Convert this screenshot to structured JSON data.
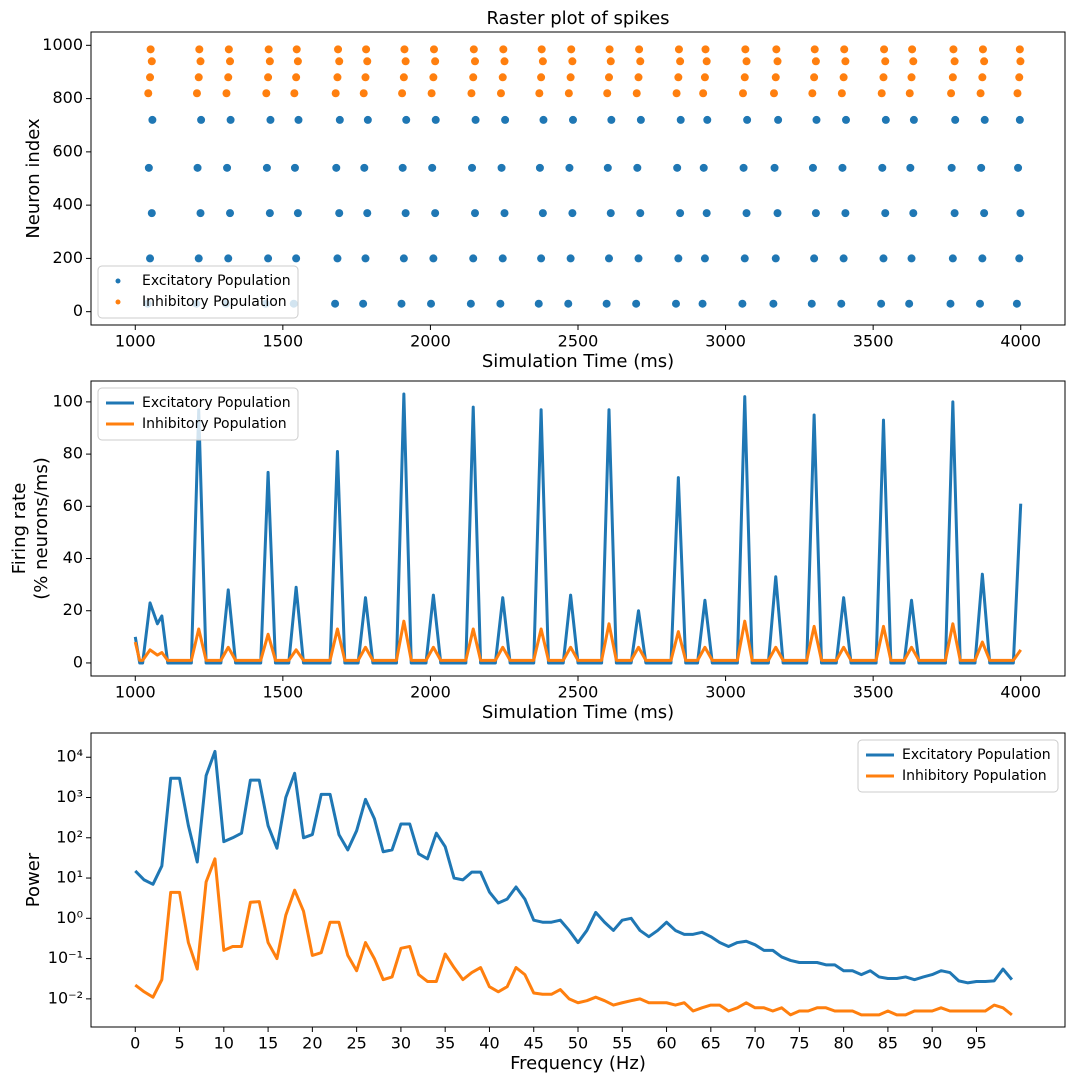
{
  "chart_data": [
    {
      "type": "scatter",
      "title": "Raster plot of spikes",
      "xlabel": "Simulation Time (ms)",
      "ylabel": "Neuron index",
      "xlim": [
        850,
        4150
      ],
      "xticks": [
        1000,
        1500,
        2000,
        2500,
        3000,
        3500,
        4000
      ],
      "ylim": [
        -50,
        1050
      ],
      "yticks": [
        0,
        200,
        400,
        600,
        800,
        1000
      ],
      "legend": "lower left",
      "series": [
        {
          "name": "Excitatory Population",
          "color": "#1f77b4",
          "x": [
            1042,
            1050,
            1056,
            1046,
            1058,
            1207,
            1215,
            1221,
            1211,
            1223,
            1307,
            1315,
            1321,
            1311,
            1323,
            1442,
            1450,
            1456,
            1446,
            1458,
            1537,
            1545,
            1551,
            1541,
            1553,
            1677,
            1685,
            1691,
            1681,
            1693,
            1772,
            1780,
            1786,
            1776,
            1788,
            1902,
            1910,
            1916,
            1906,
            1918,
            2002,
            2010,
            2016,
            2006,
            2018,
            2137,
            2145,
            2151,
            2141,
            2153,
            2237,
            2245,
            2251,
            2241,
            2253,
            2367,
            2375,
            2381,
            2371,
            2383,
            2467,
            2475,
            2481,
            2471,
            2483,
            2597,
            2605,
            2611,
            2601,
            2613,
            2697,
            2705,
            2711,
            2701,
            2713,
            2832,
            2840,
            2846,
            2836,
            2848,
            2922,
            2930,
            2936,
            2926,
            2938,
            3057,
            3065,
            3071,
            3061,
            3073,
            3162,
            3170,
            3176,
            3166,
            3178,
            3292,
            3300,
            3306,
            3296,
            3308,
            3392,
            3400,
            3406,
            3396,
            3408,
            3527,
            3535,
            3541,
            3531,
            3543,
            3622,
            3630,
            3636,
            3626,
            3638,
            3762,
            3770,
            3776,
            3766,
            3778,
            3862,
            3870,
            3876,
            3866,
            3878,
            3987,
            3995,
            3999,
            3991,
            3997
          ],
          "values": [
            30,
            200,
            370,
            540,
            720,
            30,
            200,
            370,
            540,
            720,
            30,
            200,
            370,
            540,
            720,
            30,
            200,
            370,
            540,
            720,
            30,
            200,
            370,
            540,
            720,
            30,
            200,
            370,
            540,
            720,
            30,
            200,
            370,
            540,
            720,
            30,
            200,
            370,
            540,
            720,
            30,
            200,
            370,
            540,
            720,
            30,
            200,
            370,
            540,
            720,
            30,
            200,
            370,
            540,
            720,
            30,
            200,
            370,
            540,
            720,
            30,
            200,
            370,
            540,
            720,
            30,
            200,
            370,
            540,
            720,
            30,
            200,
            370,
            540,
            720,
            30,
            200,
            370,
            540,
            720,
            30,
            200,
            370,
            540,
            720,
            30,
            200,
            370,
            540,
            720,
            30,
            200,
            370,
            540,
            720,
            30,
            200,
            370,
            540,
            720,
            30,
            200,
            370,
            540,
            720,
            30,
            200,
            370,
            540,
            720,
            30,
            200,
            370,
            540,
            720,
            30,
            200,
            370,
            540,
            720,
            30,
            200,
            370,
            540,
            720,
            30,
            200,
            370,
            540,
            720
          ]
        },
        {
          "name": "Inhibitory Population",
          "color": "#ff7f0e",
          "x": [
            1044,
            1050,
            1056,
            1052,
            1209,
            1215,
            1221,
            1217,
            1309,
            1315,
            1321,
            1317,
            1444,
            1450,
            1456,
            1452,
            1539,
            1545,
            1551,
            1547,
            1679,
            1685,
            1691,
            1687,
            1774,
            1780,
            1786,
            1782,
            1904,
            1910,
            1916,
            1912,
            2004,
            2010,
            2016,
            2012,
            2139,
            2145,
            2151,
            2147,
            2239,
            2245,
            2251,
            2247,
            2369,
            2375,
            2381,
            2377,
            2469,
            2475,
            2481,
            2477,
            2599,
            2605,
            2611,
            2607,
            2699,
            2705,
            2711,
            2707,
            2834,
            2840,
            2846,
            2842,
            2924,
            2930,
            2936,
            2932,
            3059,
            3065,
            3071,
            3067,
            3164,
            3170,
            3176,
            3172,
            3294,
            3300,
            3306,
            3302,
            3394,
            3400,
            3406,
            3402,
            3529,
            3535,
            3541,
            3537,
            3624,
            3630,
            3636,
            3632,
            3764,
            3770,
            3776,
            3772,
            3864,
            3870,
            3876,
            3872,
            3989,
            3995,
            3999,
            3997
          ],
          "values": [
            820,
            880,
            940,
            985,
            820,
            880,
            940,
            985,
            820,
            880,
            940,
            985,
            820,
            880,
            940,
            985,
            820,
            880,
            940,
            985,
            820,
            880,
            940,
            985,
            820,
            880,
            940,
            985,
            820,
            880,
            940,
            985,
            820,
            880,
            940,
            985,
            820,
            880,
            940,
            985,
            820,
            880,
            940,
            985,
            820,
            880,
            940,
            985,
            820,
            880,
            940,
            985,
            820,
            880,
            940,
            985,
            820,
            880,
            940,
            985,
            820,
            880,
            940,
            985,
            820,
            880,
            940,
            985,
            820,
            880,
            940,
            985,
            820,
            880,
            940,
            985,
            820,
            880,
            940,
            985,
            820,
            880,
            940,
            985,
            820,
            880,
            940,
            985,
            820,
            880,
            940,
            985,
            820,
            880,
            940,
            985,
            820,
            880,
            940,
            985,
            820,
            880,
            940,
            985
          ]
        }
      ]
    },
    {
      "type": "line",
      "xlabel": "Simulation Time (ms)",
      "ylabel": [
        "Firing rate",
        "(% neurons/ms)"
      ],
      "xlim": [
        850,
        4150
      ],
      "xticks": [
        1000,
        1500,
        2000,
        2500,
        3000,
        3500,
        4000
      ],
      "ylim": [
        -5,
        108
      ],
      "yticks": [
        0,
        20,
        40,
        60,
        80,
        100
      ],
      "legend": "upper left",
      "x": [
        1000,
        1015,
        1025,
        1050,
        1075,
        1090,
        1110,
        1190,
        1215,
        1240,
        1290,
        1315,
        1340,
        1425,
        1450,
        1475,
        1520,
        1545,
        1570,
        1660,
        1685,
        1710,
        1755,
        1780,
        1805,
        1885,
        1910,
        1935,
        1985,
        2010,
        2035,
        2120,
        2145,
        2170,
        2220,
        2245,
        2270,
        2350,
        2375,
        2400,
        2450,
        2475,
        2500,
        2580,
        2605,
        2630,
        2680,
        2705,
        2730,
        2815,
        2840,
        2865,
        2905,
        2930,
        2955,
        3040,
        3065,
        3090,
        3145,
        3170,
        3195,
        3275,
        3300,
        3325,
        3375,
        3400,
        3425,
        3510,
        3535,
        3560,
        3605,
        3630,
        3655,
        3745,
        3770,
        3795,
        3845,
        3870,
        3895,
        3975,
        4000
      ],
      "series": [
        {
          "name": "Excitatory Population",
          "color": "#1f77b4",
          "values": [
            10,
            0,
            0,
            23,
            15,
            18,
            0,
            0,
            97,
            0,
            0,
            28,
            0,
            0,
            73,
            0,
            0,
            29,
            0,
            0,
            81,
            0,
            0,
            25,
            0,
            0,
            103,
            0,
            0,
            26,
            0,
            0,
            98,
            0,
            0,
            25,
            0,
            0,
            97,
            0,
            0,
            26,
            0,
            0,
            97,
            0,
            0,
            20,
            0,
            0,
            71,
            0,
            0,
            24,
            0,
            0,
            102,
            0,
            0,
            33,
            0,
            0,
            95,
            0,
            0,
            25,
            0,
            0,
            93,
            0,
            0,
            24,
            0,
            0,
            100,
            0,
            0,
            34,
            0,
            0,
            61
          ]
        },
        {
          "name": "Inhibitory Population",
          "color": "#ff7f0e",
          "values": [
            8,
            1,
            1,
            5,
            3,
            4,
            1,
            1,
            13,
            1,
            1,
            6,
            1,
            1,
            11,
            1,
            1,
            5,
            1,
            1,
            13,
            1,
            1,
            6,
            1,
            1,
            16,
            1,
            1,
            6,
            1,
            1,
            13,
            1,
            1,
            6,
            1,
            1,
            13,
            1,
            1,
            6,
            1,
            1,
            15,
            1,
            1,
            6,
            1,
            1,
            12,
            1,
            1,
            6,
            1,
            1,
            16,
            1,
            1,
            6,
            1,
            1,
            14,
            1,
            1,
            6,
            1,
            1,
            14,
            1,
            1,
            6,
            1,
            1,
            15,
            1,
            1,
            8,
            1,
            1,
            5
          ]
        }
      ]
    },
    {
      "type": "line",
      "xlabel": "Frequency (Hz)",
      "ylabel": "Power",
      "ylog": true,
      "xlim": [
        -5,
        105
      ],
      "xticks": [
        0,
        5,
        10,
        15,
        20,
        25,
        30,
        35,
        40,
        45,
        50,
        55,
        60,
        65,
        70,
        75,
        80,
        85,
        90,
        95
      ],
      "ylim": [
        0.002,
        40000
      ],
      "yticks": [
        {
          "value": 0.01,
          "label": "10⁻²"
        },
        {
          "value": 0.1,
          "label": "10⁻¹"
        },
        {
          "value": 1,
          "label": "10⁰"
        },
        {
          "value": 10,
          "label": "10¹"
        },
        {
          "value": 100,
          "label": "10²"
        },
        {
          "value": 1000,
          "label": "10³"
        },
        {
          "value": 10000,
          "label": "10⁴"
        }
      ],
      "legend": "upper right",
      "x": [
        0,
        1,
        2,
        3,
        4,
        5,
        6,
        7,
        8,
        9,
        10,
        11,
        12,
        13,
        14,
        15,
        16,
        17,
        18,
        19,
        20,
        21,
        22,
        23,
        24,
        25,
        26,
        27,
        28,
        29,
        30,
        31,
        32,
        33,
        34,
        35,
        36,
        37,
        38,
        39,
        40,
        41,
        42,
        43,
        44,
        45,
        46,
        47,
        48,
        49,
        50,
        51,
        52,
        53,
        54,
        55,
        56,
        57,
        58,
        59,
        60,
        61,
        62,
        63,
        64,
        65,
        66,
        67,
        68,
        69,
        70,
        71,
        72,
        73,
        74,
        75,
        76,
        77,
        78,
        79,
        80,
        81,
        82,
        83,
        84,
        85,
        86,
        87,
        88,
        89,
        90,
        91,
        92,
        93,
        94,
        95,
        96,
        97,
        98,
        99
      ],
      "series": [
        {
          "name": "Excitatory Population",
          "color": "#1f77b4",
          "values": [
            15,
            9,
            7,
            20,
            3000,
            3000,
            200,
            25,
            3500,
            14000,
            80,
            100,
            130,
            2700,
            2700,
            200,
            55,
            1000,
            4000,
            100,
            120,
            1200,
            1200,
            120,
            50,
            150,
            900,
            300,
            45,
            50,
            220,
            220,
            40,
            30,
            130,
            60,
            10,
            9,
            14,
            14,
            4.5,
            2.4,
            3,
            6,
            3,
            0.9,
            0.8,
            0.8,
            0.9,
            0.5,
            0.25,
            0.5,
            1.4,
            0.8,
            0.5,
            0.9,
            1,
            0.5,
            0.35,
            0.5,
            0.8,
            0.5,
            0.4,
            0.4,
            0.45,
            0.35,
            0.25,
            0.2,
            0.25,
            0.27,
            0.22,
            0.16,
            0.16,
            0.11,
            0.09,
            0.08,
            0.08,
            0.08,
            0.07,
            0.07,
            0.05,
            0.05,
            0.04,
            0.05,
            0.035,
            0.032,
            0.032,
            0.035,
            0.03,
            0.035,
            0.04,
            0.05,
            0.045,
            0.028,
            0.025,
            0.027,
            0.027,
            0.028,
            0.055,
            0.03
          ]
        },
        {
          "name": "Inhibitory Population",
          "color": "#ff7f0e",
          "values": [
            0.022,
            0.015,
            0.011,
            0.03,
            4.4,
            4.4,
            0.25,
            0.055,
            8,
            30,
            0.16,
            0.2,
            0.2,
            2.5,
            2.6,
            0.25,
            0.1,
            1.2,
            5,
            1.5,
            0.12,
            0.14,
            0.8,
            0.8,
            0.12,
            0.05,
            0.25,
            0.1,
            0.03,
            0.035,
            0.18,
            0.2,
            0.04,
            0.027,
            0.027,
            0.13,
            0.06,
            0.03,
            0.045,
            0.06,
            0.02,
            0.015,
            0.02,
            0.06,
            0.04,
            0.014,
            0.013,
            0.013,
            0.017,
            0.01,
            0.008,
            0.009,
            0.011,
            0.009,
            0.007,
            0.008,
            0.009,
            0.01,
            0.008,
            0.008,
            0.008,
            0.007,
            0.008,
            0.005,
            0.006,
            0.007,
            0.007,
            0.005,
            0.006,
            0.008,
            0.006,
            0.006,
            0.005,
            0.006,
            0.004,
            0.005,
            0.005,
            0.006,
            0.006,
            0.005,
            0.005,
            0.005,
            0.004,
            0.004,
            0.004,
            0.005,
            0.004,
            0.004,
            0.005,
            0.005,
            0.005,
            0.006,
            0.005,
            0.005,
            0.005,
            0.005,
            0.005,
            0.007,
            0.006,
            0.004
          ]
        }
      ]
    }
  ]
}
